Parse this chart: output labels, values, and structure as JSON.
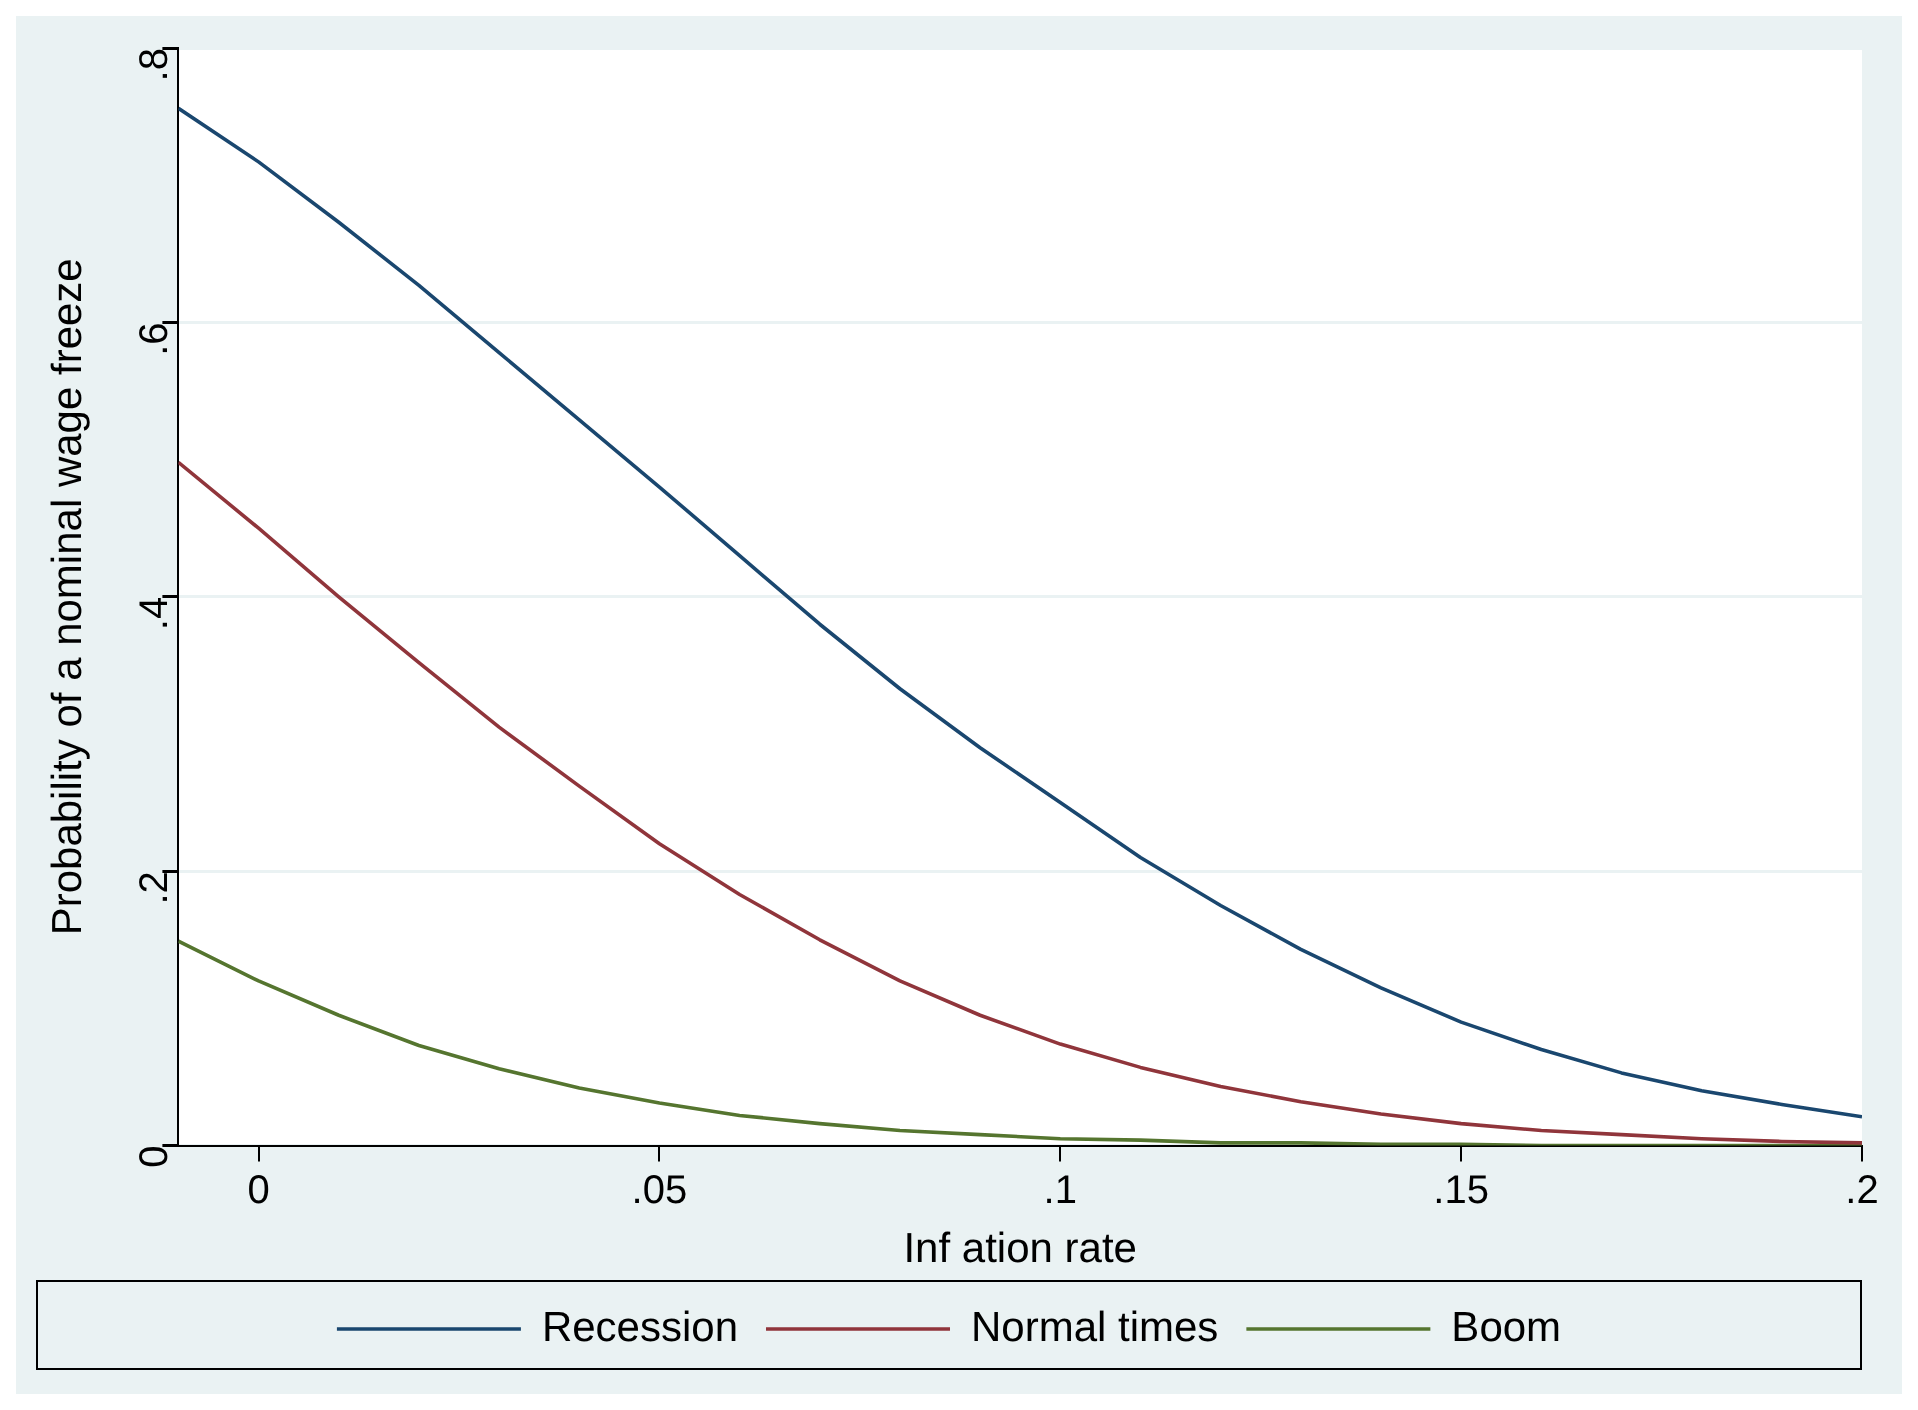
{
  "chart_data": {
    "type": "line",
    "xlabel": "Inf ation rate",
    "ylabel": "Probability of a nominal wage freeze",
    "x": [
      -0.01,
      0,
      0.01,
      0.02,
      0.03,
      0.04,
      0.05,
      0.06,
      0.07,
      0.08,
      0.09,
      0.1,
      0.11,
      0.12,
      0.13,
      0.14,
      0.15,
      0.16,
      0.17,
      0.18,
      0.19,
      0.2
    ],
    "series": [
      {
        "name": "Recession",
        "color": "#1a476f",
        "values": [
          0.756,
          0.717,
          0.673,
          0.627,
          0.578,
          0.529,
          0.48,
          0.43,
          0.38,
          0.333,
          0.29,
          0.25,
          0.21,
          0.175,
          0.143,
          0.115,
          0.09,
          0.07,
          0.053,
          0.04,
          0.03,
          0.021
        ]
      },
      {
        "name": "Normal times",
        "color": "#90353b",
        "values": [
          0.498,
          0.45,
          0.4,
          0.352,
          0.305,
          0.262,
          0.22,
          0.183,
          0.15,
          0.12,
          0.095,
          0.074,
          0.057,
          0.043,
          0.032,
          0.023,
          0.016,
          0.011,
          0.008,
          0.005,
          0.003,
          0.002
        ]
      },
      {
        "name": "Boom",
        "color": "#55752f",
        "values": [
          0.149,
          0.12,
          0.095,
          0.073,
          0.056,
          0.042,
          0.031,
          0.022,
          0.016,
          0.011,
          0.008,
          0.005,
          0.004,
          0.002,
          0.002,
          0.001,
          0.001,
          0,
          0,
          0,
          0,
          0
        ]
      }
    ],
    "xlim": [
      -0.01,
      0.2
    ],
    "ylim": [
      0,
      0.8
    ],
    "xticks": [
      0,
      {
        "value": 0.05,
        "label": ".05"
      },
      {
        "value": 0.1,
        "label": ".1"
      },
      {
        "value": 0.15,
        "label": ".15"
      },
      {
        "value": 0.2,
        "label": ".2"
      }
    ],
    "yticks": [
      0,
      {
        "value": 0.2,
        "label": ".2"
      },
      {
        "value": 0.4,
        "label": ".4"
      },
      {
        "value": 0.6,
        "label": ".6"
      },
      {
        "value": 0.8,
        "label": ".8"
      }
    ],
    "grid": "y",
    "legend": "bottom",
    "marker": "none",
    "line_style": "solid"
  }
}
